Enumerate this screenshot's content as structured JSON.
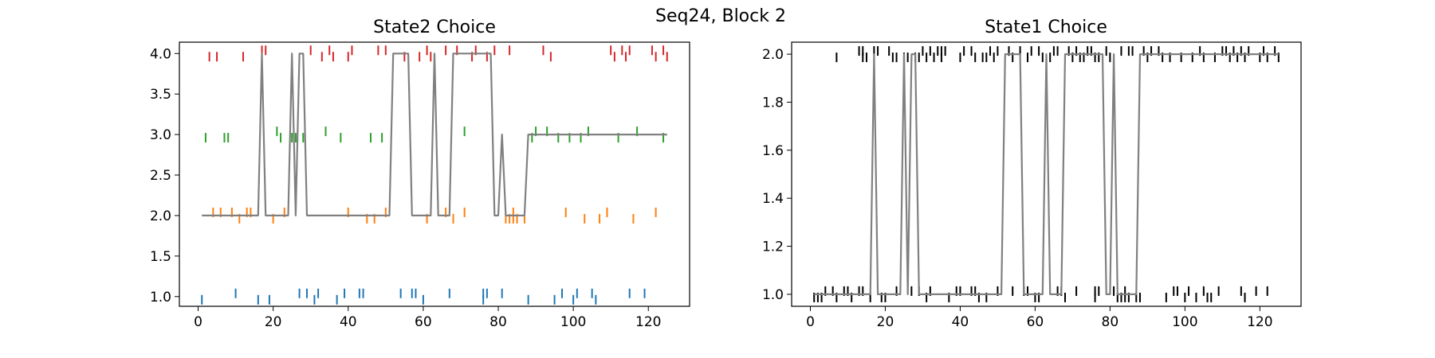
{
  "figure": {
    "suptitle": "Seq24, Block 2"
  },
  "chart_data": [
    {
      "type": "line",
      "title": "State2 Choice",
      "xlabel": "",
      "ylabel": "",
      "xlim": [
        -5,
        131
      ],
      "ylim": [
        0.88,
        4.14
      ],
      "xticks": [
        0,
        20,
        40,
        60,
        80,
        100,
        120
      ],
      "xtick_labels": [
        "0",
        "20",
        "40",
        "60",
        "80",
        "100",
        "120"
      ],
      "yticks": [
        1.0,
        1.5,
        2.0,
        2.5,
        3.0,
        3.5,
        4.0
      ],
      "ytick_labels": [
        "1.0",
        "1.5",
        "2.0",
        "2.5",
        "3.0",
        "3.5",
        "4.0"
      ],
      "grid": false,
      "line": {
        "color": "#808080",
        "points": [
          [
            1,
            2
          ],
          [
            16,
            2
          ],
          [
            17,
            4
          ],
          [
            18,
            2
          ],
          [
            24,
            2
          ],
          [
            25,
            4
          ],
          [
            26,
            2
          ],
          [
            27,
            4
          ],
          [
            28,
            4
          ],
          [
            29,
            2
          ],
          [
            51,
            2
          ],
          [
            52,
            4
          ],
          [
            56,
            4
          ],
          [
            57,
            2
          ],
          [
            62,
            2
          ],
          [
            63,
            4
          ],
          [
            64,
            2
          ],
          [
            67,
            2
          ],
          [
            68,
            4
          ],
          [
            78,
            4
          ],
          [
            79,
            2
          ],
          [
            80,
            2
          ],
          [
            81,
            3
          ],
          [
            82,
            2
          ],
          [
            87,
            2
          ],
          [
            88,
            3
          ],
          [
            125,
            3
          ]
        ]
      },
      "event_groups": [
        {
          "level": 1,
          "color": "#1f77b4",
          "up": [
            10,
            27,
            29,
            32,
            39,
            43,
            44,
            54,
            57,
            58,
            67,
            76,
            77,
            81,
            97,
            101,
            105,
            115,
            119
          ],
          "down": [
            1,
            16,
            19,
            31,
            37,
            60,
            76,
            88,
            95,
            100,
            106
          ]
        },
        {
          "level": 2,
          "color": "#ff7f0e",
          "up": [
            4,
            6,
            9,
            13,
            14,
            23,
            40,
            50,
            66,
            71,
            84,
            98,
            109,
            122
          ],
          "down": [
            11,
            20,
            45,
            47,
            61,
            68,
            82,
            83,
            84,
            85,
            87,
            103,
            107,
            116
          ]
        },
        {
          "level": 3,
          "color": "#2ca02c",
          "up": [
            21,
            34,
            71,
            90,
            93,
            104,
            117
          ],
          "down": [
            2,
            7,
            8,
            22,
            25,
            26,
            28,
            38,
            46,
            49,
            89,
            96,
            99,
            102,
            112,
            124
          ]
        },
        {
          "level": 4,
          "color": "#d62728",
          "up": [
            17,
            18,
            30,
            35,
            41,
            48,
            50,
            61,
            66,
            69,
            74,
            79,
            83,
            92,
            110,
            113,
            115,
            121,
            124
          ],
          "down": [
            3,
            5,
            12,
            33,
            36,
            40,
            55,
            59,
            62,
            73,
            77,
            94,
            111,
            114,
            122,
            125
          ]
        }
      ]
    },
    {
      "type": "line",
      "title": "State1 Choice",
      "xlabel": "",
      "ylabel": "",
      "xlim": [
        -5,
        131
      ],
      "ylim": [
        0.95,
        2.05
      ],
      "xticks": [
        0,
        20,
        40,
        60,
        80,
        100,
        120
      ],
      "xtick_labels": [
        "0",
        "20",
        "40",
        "60",
        "80",
        "100",
        "120"
      ],
      "yticks": [
        1.0,
        1.2,
        1.4,
        1.6,
        1.8,
        2.0
      ],
      "ytick_labels": [
        "1.0",
        "1.2",
        "1.4",
        "1.6",
        "1.8",
        "2.0"
      ],
      "grid": false,
      "line": {
        "color": "#808080",
        "points": [
          [
            1,
            1
          ],
          [
            16,
            1
          ],
          [
            17,
            2
          ],
          [
            18,
            1
          ],
          [
            24,
            1
          ],
          [
            25,
            2
          ],
          [
            26,
            1
          ],
          [
            27,
            2
          ],
          [
            28,
            2
          ],
          [
            29,
            1
          ],
          [
            51,
            1
          ],
          [
            52,
            2
          ],
          [
            56,
            2
          ],
          [
            57,
            1
          ],
          [
            62,
            1
          ],
          [
            63,
            2
          ],
          [
            64,
            1
          ],
          [
            67,
            1
          ],
          [
            68,
            2
          ],
          [
            78,
            2
          ],
          [
            79,
            1
          ],
          [
            80,
            1
          ],
          [
            81,
            2
          ],
          [
            82,
            1
          ],
          [
            87,
            1
          ],
          [
            88,
            2
          ],
          [
            125,
            2
          ]
        ]
      },
      "event_groups": [
        {
          "level": 1,
          "color": "#000000",
          "up": [
            4,
            6,
            9,
            10,
            13,
            14,
            23,
            27,
            29,
            32,
            39,
            40,
            43,
            44,
            50,
            54,
            57,
            58,
            66,
            67,
            71,
            76,
            77,
            81,
            84,
            97,
            98,
            101,
            105,
            109,
            115,
            119,
            122
          ],
          "down": [
            1,
            2,
            3,
            7,
            11,
            16,
            19,
            20,
            31,
            37,
            45,
            47,
            60,
            61,
            68,
            76,
            82,
            83,
            84,
            85,
            87,
            88,
            95,
            100,
            103,
            106,
            107,
            116
          ]
        },
        {
          "level": 2,
          "color": "#000000",
          "up": [
            13,
            14,
            17,
            18,
            21,
            30,
            32,
            34,
            35,
            36,
            41,
            43,
            48,
            50,
            53,
            56,
            59,
            61,
            65,
            66,
            69,
            71,
            74,
            75,
            79,
            83,
            85,
            86,
            89,
            91,
            93,
            104,
            110,
            111,
            113,
            115,
            117,
            121,
            124
          ],
          "down": [
            7,
            14,
            15,
            22,
            23,
            25,
            26,
            28,
            29,
            31,
            33,
            35,
            40,
            44,
            46,
            47,
            49,
            54,
            58,
            62,
            64,
            70,
            72,
            73,
            76,
            77,
            80,
            90,
            94,
            96,
            99,
            102,
            105,
            108,
            112,
            114,
            116,
            120,
            122,
            125
          ]
        }
      ]
    }
  ]
}
